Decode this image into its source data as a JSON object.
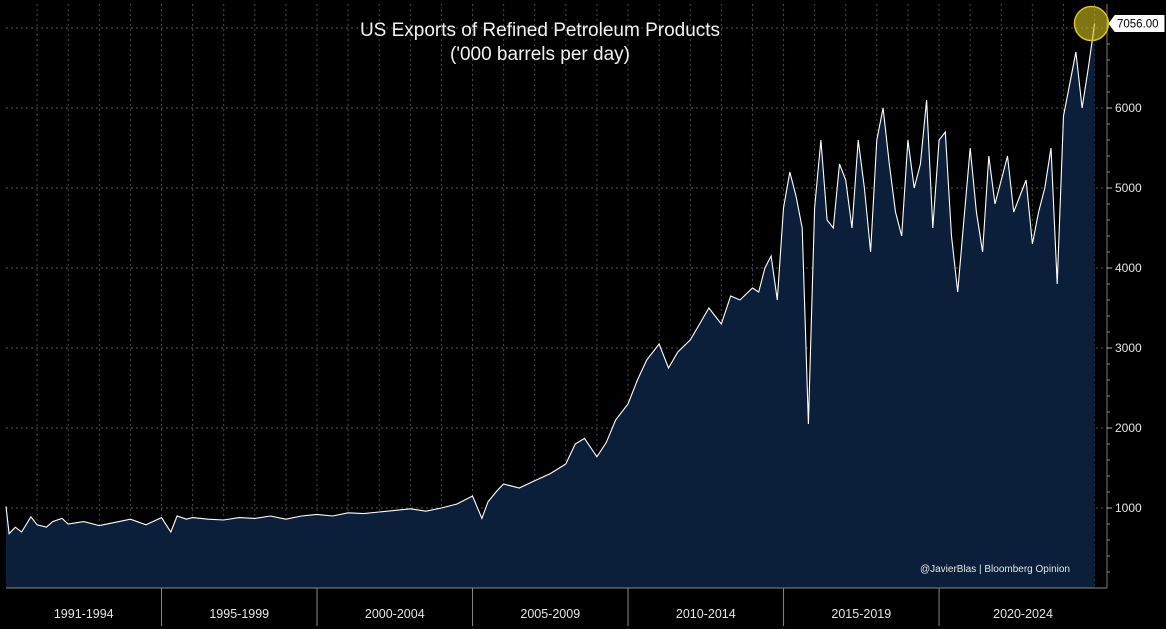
{
  "chart_data": {
    "type": "area",
    "title": "US Exports of Refined Petroleum Products",
    "subtitle": "('000 barrels per day)",
    "xlabel": "",
    "ylabel": "",
    "ylim": [
      0,
      7300
    ],
    "xlim": [
      1990.0,
      2025.4
    ],
    "yticks": [
      1000,
      2000,
      3000,
      4000,
      5000,
      6000
    ],
    "x_categories": [
      "1991-1994",
      "1995-1999",
      "2000-2004",
      "2005-2009",
      "2010-2014",
      "2015-2019",
      "2020-2024"
    ],
    "last_value_label": "7056.00",
    "last_value": 7056,
    "series": [
      {
        "name": "US Exports of Refined Petroleum Products",
        "x": [
          1990.0,
          1990.1,
          1990.3,
          1990.5,
          1990.8,
          1991.0,
          1991.3,
          1991.5,
          1991.8,
          1992.0,
          1992.5,
          1993.0,
          1993.5,
          1994.0,
          1994.5,
          1995.0,
          1995.3,
          1995.5,
          1995.8,
          1996.0,
          1996.5,
          1997.0,
          1997.5,
          1998.0,
          1998.5,
          1999.0,
          1999.5,
          2000.0,
          2000.5,
          2001.0,
          2001.5,
          2002.0,
          2002.5,
          2003.0,
          2003.5,
          2004.0,
          2004.5,
          2005.0,
          2005.3,
          2005.5,
          2005.8,
          2006.0,
          2006.5,
          2007.0,
          2007.5,
          2008.0,
          2008.3,
          2008.6,
          2009.0,
          2009.3,
          2009.6,
          2010.0,
          2010.3,
          2010.6,
          2011.0,
          2011.3,
          2011.6,
          2012.0,
          2012.3,
          2012.6,
          2013.0,
          2013.3,
          2013.6,
          2014.0,
          2014.2,
          2014.4,
          2014.6,
          2014.8,
          2015.0,
          2015.2,
          2015.4,
          2015.6,
          2015.8,
          2016.0,
          2016.2,
          2016.4,
          2016.6,
          2016.8,
          2017.0,
          2017.2,
          2017.4,
          2017.6,
          2017.8,
          2018.0,
          2018.2,
          2018.4,
          2018.6,
          2018.8,
          2019.0,
          2019.2,
          2019.4,
          2019.6,
          2019.8,
          2020.0,
          2020.2,
          2020.4,
          2020.6,
          2020.8,
          2021.0,
          2021.2,
          2021.4,
          2021.6,
          2021.8,
          2022.0,
          2022.2,
          2022.4,
          2022.6,
          2022.8,
          2023.0,
          2023.2,
          2023.4,
          2023.6,
          2023.8,
          2024.0,
          2024.2,
          2024.4,
          2024.6,
          2024.8,
          2025.0
        ],
        "values": [
          1020,
          680,
          760,
          700,
          890,
          790,
          760,
          830,
          870,
          800,
          830,
          780,
          820,
          860,
          790,
          880,
          700,
          900,
          860,
          880,
          860,
          850,
          880,
          870,
          900,
          860,
          900,
          920,
          900,
          940,
          930,
          950,
          970,
          990,
          960,
          1000,
          1050,
          1150,
          870,
          1080,
          1220,
          1300,
          1250,
          1340,
          1430,
          1550,
          1800,
          1870,
          1640,
          1820,
          2100,
          2300,
          2600,
          2850,
          3050,
          2750,
          2950,
          3100,
          3300,
          3500,
          3300,
          3650,
          3600,
          3750,
          3700,
          4000,
          4150,
          3600,
          4750,
          5200,
          4900,
          4500,
          2050,
          4750,
          5600,
          4600,
          4500,
          5300,
          5100,
          4500,
          5600,
          5000,
          4200,
          5600,
          6000,
          5300,
          4700,
          4400,
          5600,
          5000,
          5300,
          6100,
          4500,
          5600,
          5700,
          4400,
          3700,
          4600,
          5500,
          4700,
          4200,
          5400,
          4800,
          5100,
          5400,
          4700,
          4900,
          5100,
          4300,
          4700,
          5000,
          5500,
          3800,
          5900,
          6300,
          6700,
          6000,
          6500,
          7056
        ],
        "color": "#ffffff",
        "fill": "#0b1f3a"
      }
    ],
    "highlight": {
      "x": 2024.9,
      "y": 7056,
      "color": "#d4c520"
    }
  },
  "credit": "@JavierBlas | Bloomberg Opinion"
}
